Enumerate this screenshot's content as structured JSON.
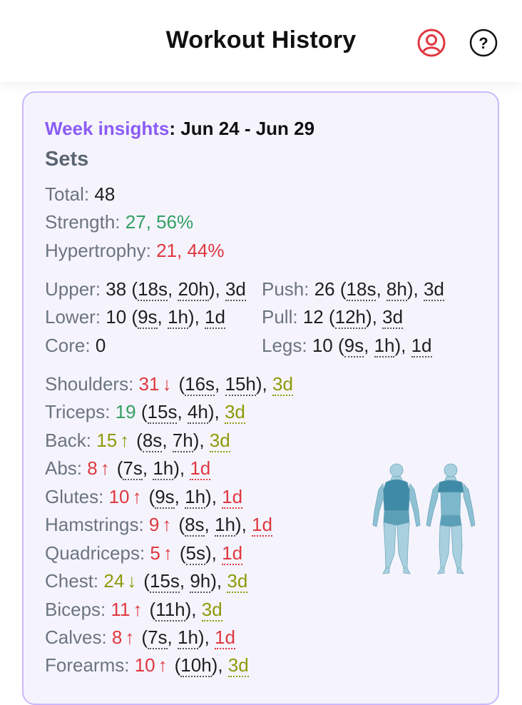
{
  "header": {
    "title": "Workout History",
    "profile_icon": "user-circle-icon",
    "help_icon": "question-circle-icon"
  },
  "colors": {
    "accent": "#8b5cf6",
    "green": "#33a061",
    "red": "#e0373f",
    "olive": "#8d9a08",
    "card_bg": "#f5f4fd",
    "card_border": "#cbb8fb"
  },
  "insights": {
    "week_label": "Week insights",
    "week_range": ": Jun 24 - Jun 29",
    "sets_heading": "Sets",
    "total": {
      "label": "Total: ",
      "value": "48"
    },
    "strength": {
      "label": "Strength: ",
      "value": "27, 56%"
    },
    "hypertrophy": {
      "label": "Hypertrophy: ",
      "value": "21, 44%"
    },
    "groups": {
      "upper": {
        "label": "Upper: ",
        "count": "38",
        "s": "18s",
        "h": "20h",
        "d": "3d"
      },
      "lower": {
        "label": "Lower: ",
        "count": "10",
        "s": "9s",
        "h": "1h",
        "d": "1d"
      },
      "core": {
        "label": "Core: ",
        "count": "0"
      },
      "push": {
        "label": "Push: ",
        "count": "26",
        "s": "18s",
        "h": "8h",
        "d": "3d"
      },
      "pull": {
        "label": "Pull: ",
        "count": "12",
        "h": "12h",
        "d": "3d"
      },
      "legs": {
        "label": "Legs: ",
        "count": "10",
        "s": "9s",
        "h": "1h",
        "d": "1d"
      }
    },
    "muscles": [
      {
        "label": "Shoulders: ",
        "count": "31",
        "arrow": "↓",
        "s": "16s",
        "h": "15h",
        "d": "3d"
      },
      {
        "label": "Triceps: ",
        "count": "19",
        "arrow": "",
        "s": "15s",
        "h": "4h",
        "d": "3d"
      },
      {
        "label": "Back: ",
        "count": "15",
        "arrow": "↑",
        "s": "8s",
        "h": "7h",
        "d": "3d"
      },
      {
        "label": "Abs: ",
        "count": "8",
        "arrow": "↑",
        "s": "7s",
        "h": "1h",
        "d": "1d"
      },
      {
        "label": "Glutes: ",
        "count": "10",
        "arrow": "↑",
        "s": "9s",
        "h": "1h",
        "d": "1d"
      },
      {
        "label": "Hamstrings: ",
        "count": "9",
        "arrow": "↑",
        "s": "8s",
        "h": "1h",
        "d": "1d"
      },
      {
        "label": "Quadriceps: ",
        "count": "5",
        "arrow": "↑",
        "s": "5s",
        "d": "1d"
      },
      {
        "label": "Chest: ",
        "count": "24",
        "arrow": "↓",
        "s": "15s",
        "h": "9h",
        "d": "3d"
      },
      {
        "label": "Biceps: ",
        "count": "11",
        "arrow": "↑",
        "h": "11h",
        "d": "3d"
      },
      {
        "label": "Calves: ",
        "count": "8",
        "arrow": "↑",
        "s": "7s",
        "h": "1h",
        "d": "1d"
      },
      {
        "label": "Forearms: ",
        "count": "10",
        "arrow": "↑",
        "h": "10h",
        "d": "3d"
      }
    ],
    "muscle_map_icon": "body-muscle-map-icon"
  }
}
